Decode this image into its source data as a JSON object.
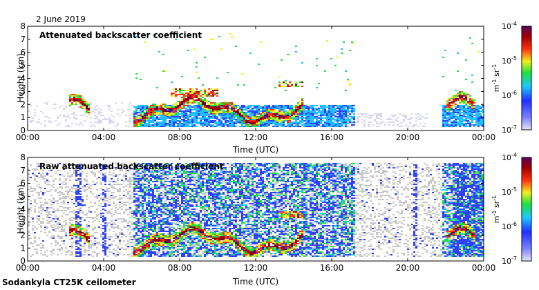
{
  "date": "2 June 2019",
  "footer": "Sodankyla CT25K ceilometer",
  "chart_data": [
    {
      "type": "heatmap",
      "title": "Attenuated backscatter coefficient",
      "xlabel": "Time (UTC)",
      "ylabel": "Height (km)",
      "xticks": [
        "00:00",
        "04:00",
        "08:00",
        "12:00",
        "16:00",
        "20:00",
        "00:00"
      ],
      "yticks": [
        "0",
        "1",
        "2",
        "3",
        "4",
        "5",
        "6",
        "7",
        "8"
      ],
      "xlim_hours": [
        0,
        24
      ],
      "ylim_km": [
        0,
        8
      ],
      "colorbar": {
        "scale": "log",
        "range": [
          1e-07,
          0.0001
        ],
        "tick_mantissa": "10",
        "tick_exponents": [
          "-4",
          "-5",
          "-6",
          "-7"
        ],
        "unit_m": "m",
        "unit_m_exp": "-1",
        "unit_sr": "sr",
        "unit_sr_exp": "-1"
      }
    },
    {
      "type": "heatmap",
      "title": "Raw attenuated backscatter coefficient",
      "xlabel": "Time (UTC)",
      "ylabel": "Height (km)",
      "xticks": [
        "00:00",
        "04:00",
        "08:00",
        "12:00",
        "16:00",
        "20:00",
        "00:00"
      ],
      "yticks": [
        "0",
        "1",
        "2",
        "3",
        "4",
        "5",
        "6",
        "7",
        "8"
      ],
      "xlim_hours": [
        0,
        24
      ],
      "ylim_km": [
        0,
        8
      ],
      "colorbar": {
        "scale": "log",
        "range": [
          1e-07,
          0.0001
        ],
        "tick_mantissa": "10",
        "tick_exponents": [
          "-4",
          "-5",
          "-6",
          "-7"
        ],
        "unit_m": "m",
        "unit_m_exp": "-1",
        "unit_sr": "sr",
        "unit_sr_exp": "-1"
      }
    }
  ],
  "colors": {
    "scale": [
      "#d8d8f0",
      "#3040ff",
      "#20c0ff",
      "#20e040",
      "#f0f020",
      "#ff3010",
      "#a00000",
      "#5a005a"
    ],
    "raw_background": "#c8c8c8"
  }
}
